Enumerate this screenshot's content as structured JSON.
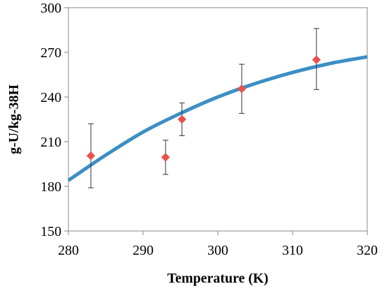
{
  "chart_data": {
    "type": "scatter",
    "title": "",
    "xlabel": "Temperature (K)",
    "ylabel": "g-U/kg-38H",
    "xlim": [
      280,
      320
    ],
    "ylim": [
      150,
      300
    ],
    "xticks": [
      280,
      290,
      300,
      310,
      320
    ],
    "yticks": [
      150,
      180,
      210,
      240,
      270,
      300
    ],
    "grid": false,
    "legend": "none",
    "series": [
      {
        "type": "scatter",
        "marker": "diamond",
        "color": "#e8534e",
        "points": [
          {
            "x": 283.0,
            "y": 200.5,
            "err_low": 179,
            "err_high": 222
          },
          {
            "x": 293.0,
            "y": 199.5,
            "err_low": 188,
            "err_high": 211
          },
          {
            "x": 295.2,
            "y": 225.0,
            "err_low": 214,
            "err_high": 236
          },
          {
            "x": 303.2,
            "y": 245.5,
            "err_low": 229,
            "err_high": 262
          },
          {
            "x": 313.2,
            "y": 265.0,
            "err_low": 245,
            "err_high": 286
          }
        ]
      },
      {
        "type": "line",
        "color": "#3b8fc4",
        "x": [
          280,
          285,
          290,
          295,
          300,
          305,
          310,
          315,
          320
        ],
        "y": [
          184.0,
          201.0,
          216.5,
          229.0,
          240.0,
          249.0,
          256.5,
          262.5,
          267.0
        ]
      }
    ]
  }
}
